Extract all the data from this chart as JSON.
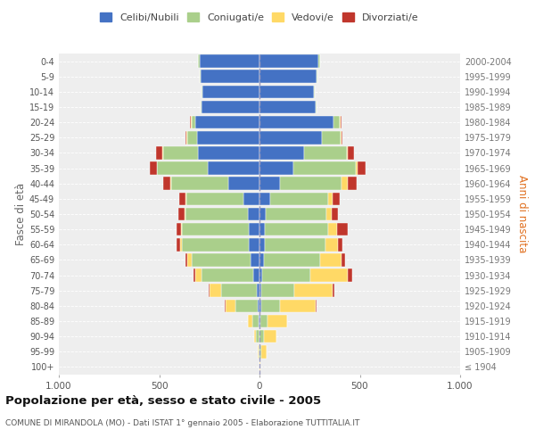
{
  "age_groups": [
    "100+",
    "95-99",
    "90-94",
    "85-89",
    "80-84",
    "75-79",
    "70-74",
    "65-69",
    "60-64",
    "55-59",
    "50-54",
    "45-49",
    "40-44",
    "35-39",
    "30-34",
    "25-29",
    "20-24",
    "15-19",
    "10-14",
    "5-9",
    "0-4"
  ],
  "birth_years": [
    "≤ 1904",
    "1905-1909",
    "1910-1914",
    "1915-1919",
    "1920-1924",
    "1925-1929",
    "1930-1934",
    "1935-1939",
    "1940-1944",
    "1945-1949",
    "1950-1954",
    "1955-1959",
    "1960-1964",
    "1965-1969",
    "1970-1974",
    "1975-1979",
    "1980-1984",
    "1985-1989",
    "1990-1994",
    "1995-1999",
    "2000-2004"
  ],
  "males": {
    "celibi": [
      0,
      0,
      2,
      4,
      8,
      15,
      30,
      45,
      55,
      55,
      60,
      80,
      155,
      260,
      305,
      310,
      320,
      290,
      285,
      295,
      300
    ],
    "coniugati": [
      2,
      5,
      15,
      30,
      110,
      175,
      260,
      295,
      330,
      330,
      310,
      285,
      285,
      250,
      175,
      50,
      20,
      5,
      5,
      5,
      5
    ],
    "vedovi": [
      0,
      2,
      10,
      25,
      50,
      60,
      30,
      20,
      10,
      5,
      5,
      5,
      5,
      0,
      5,
      5,
      3,
      0,
      0,
      0,
      0
    ],
    "divorziati": [
      0,
      0,
      0,
      0,
      5,
      5,
      10,
      10,
      20,
      25,
      30,
      30,
      35,
      35,
      30,
      5,
      3,
      0,
      0,
      0,
      0
    ]
  },
  "females": {
    "nubili": [
      0,
      2,
      2,
      4,
      8,
      10,
      15,
      20,
      25,
      25,
      30,
      55,
      100,
      170,
      220,
      310,
      370,
      280,
      270,
      285,
      295
    ],
    "coniugate": [
      2,
      5,
      18,
      35,
      95,
      165,
      240,
      280,
      305,
      315,
      305,
      285,
      310,
      310,
      215,
      95,
      30,
      5,
      5,
      5,
      5
    ],
    "vedove": [
      2,
      30,
      65,
      100,
      175,
      190,
      185,
      110,
      60,
      45,
      25,
      25,
      30,
      10,
      5,
      5,
      5,
      0,
      0,
      0,
      0
    ],
    "divorziate": [
      0,
      0,
      0,
      0,
      5,
      10,
      20,
      15,
      25,
      55,
      30,
      35,
      45,
      40,
      30,
      5,
      3,
      0,
      0,
      0,
      0
    ]
  },
  "colors": {
    "celibi": "#4472C4",
    "coniugati": "#AACF8B",
    "vedovi": "#FFD966",
    "divorziati": "#C0362C"
  },
  "title": "Popolazione per età, sesso e stato civile - 2005",
  "subtitle": "COMUNE DI MIRANDOLA (MO) - Dati ISTAT 1° gennaio 2005 - Elaborazione TUTTITALIA.IT",
  "ylabel_left": "Fasce di età",
  "ylabel_right": "Anni di nascita",
  "xlim": 1000,
  "background_color": "#ffffff",
  "plot_bg_color": "#eeeeee",
  "legend_labels": [
    "Celibi/Nubili",
    "Coniugati/e",
    "Vedovi/e",
    "Divorziati/e"
  ]
}
